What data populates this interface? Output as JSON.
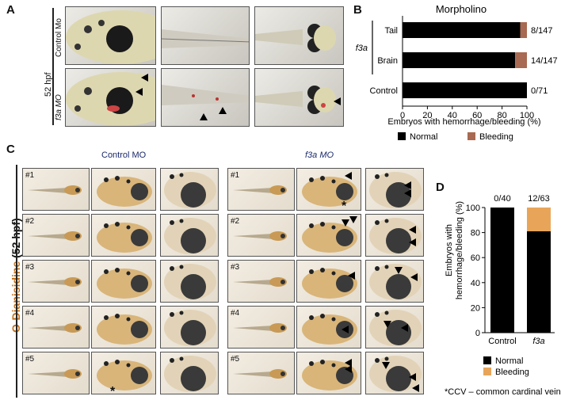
{
  "panels": {
    "A": "A",
    "B": "B",
    "C": "C",
    "D": "D"
  },
  "panelA": {
    "timepoint": "52 hpf",
    "row_labels": [
      "Control Mo",
      "f3a MO"
    ]
  },
  "panelC": {
    "side_label_prefix": "O-Dianisidine",
    "side_label_suffix": "(52 hpf)",
    "control_title": "Control MO",
    "f3a_title": "f3a MO",
    "row_numbers": [
      "#1",
      "#2",
      "#3",
      "#4",
      "#5"
    ],
    "asterisk": "*"
  },
  "chart_data": [
    {
      "type": "bar",
      "orientation": "horizontal",
      "stacked": true,
      "title": "Morpholino",
      "group_label": "f3a",
      "categories": [
        "Tail",
        "Brain",
        "Control"
      ],
      "series": [
        {
          "name": "Normal",
          "values": [
            94.6,
            90.5,
            100
          ],
          "color": "#000000"
        },
        {
          "name": "Bleeding",
          "values": [
            5.4,
            9.5,
            0
          ],
          "color": "#a86a52"
        }
      ],
      "data_labels": [
        "8/147",
        "14/147",
        "0/71"
      ],
      "xlabel": "Embryos with hemorrhage/bleeding (%)",
      "xlim": [
        0,
        100
      ],
      "xticks": [
        "0",
        "20",
        "40",
        "60",
        "80",
        "100"
      ],
      "legend": [
        "Normal",
        "Bleeding"
      ],
      "legend_position": "bottom"
    },
    {
      "type": "bar",
      "orientation": "vertical",
      "stacked": true,
      "categories": [
        "Control",
        "f3a"
      ],
      "series": [
        {
          "name": "Normal",
          "values": [
            100,
            81
          ],
          "color": "#000000"
        },
        {
          "name": "Bleeding",
          "values": [
            0,
            19
          ],
          "color": "#e8a55a"
        }
      ],
      "data_labels": [
        "0/40",
        "12/63"
      ],
      "ylabel_lines": [
        "Embryos with",
        "hemorrhage/bleeding (%)"
      ],
      "ylim": [
        0,
        100
      ],
      "yticks": [
        "0",
        "20",
        "40",
        "60",
        "80",
        "100"
      ],
      "legend": [
        "Normal",
        "Bleeding"
      ],
      "legend_position": "bottom",
      "footnote": "*CCV – common cardinal vein"
    }
  ]
}
